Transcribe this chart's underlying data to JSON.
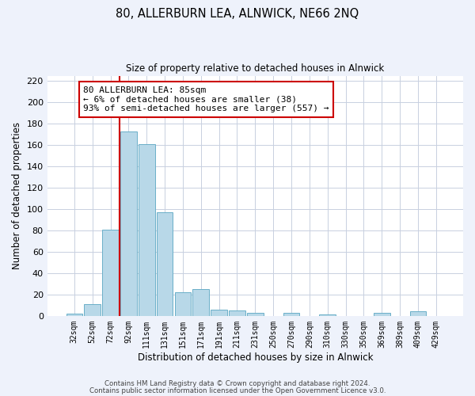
{
  "title": "80, ALLERBURN LEA, ALNWICK, NE66 2NQ",
  "subtitle": "Size of property relative to detached houses in Alnwick",
  "xlabel": "Distribution of detached houses by size in Alnwick",
  "ylabel": "Number of detached properties",
  "bar_labels": [
    "32sqm",
    "52sqm",
    "72sqm",
    "92sqm",
    "111sqm",
    "131sqm",
    "151sqm",
    "171sqm",
    "191sqm",
    "211sqm",
    "231sqm",
    "250sqm",
    "270sqm",
    "290sqm",
    "310sqm",
    "330sqm",
    "350sqm",
    "369sqm",
    "389sqm",
    "409sqm",
    "429sqm"
  ],
  "bar_values": [
    2,
    11,
    81,
    173,
    161,
    97,
    22,
    25,
    6,
    5,
    3,
    0,
    3,
    0,
    1,
    0,
    0,
    3,
    0,
    4,
    0
  ],
  "bar_color": "#b8d8e8",
  "bar_edge_color": "#6aafc8",
  "reference_line_color": "#cc0000",
  "annotation_text": "80 ALLERBURN LEA: 85sqm\n← 6% of detached houses are smaller (38)\n93% of semi-detached houses are larger (557) →",
  "annotation_box_color": "#ffffff",
  "annotation_box_edge_color": "#cc0000",
  "ylim": [
    0,
    225
  ],
  "yticks": [
    0,
    20,
    40,
    60,
    80,
    100,
    120,
    140,
    160,
    180,
    200,
    220
  ],
  "footer_line1": "Contains HM Land Registry data © Crown copyright and database right 2024.",
  "footer_line2": "Contains public sector information licensed under the Open Government Licence v3.0.",
  "bg_color": "#eef2fb",
  "plot_bg_color": "#ffffff",
  "grid_color": "#c8d0e0"
}
